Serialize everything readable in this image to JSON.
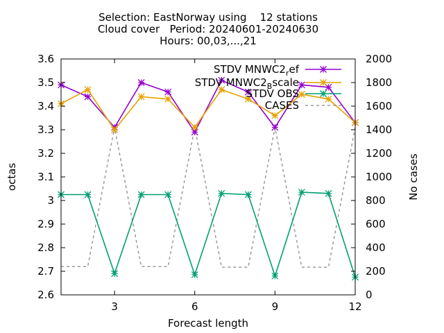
{
  "chart_data": {
    "type": "line",
    "title_lines": [
      "Selection: EastNorway using    12 stations",
      "Cloud cover   Period: 20240601-20240630",
      "Hours: 00,03,...,21"
    ],
    "xlabel": "Forecast length",
    "ylabel": "octas",
    "y2label": "No cases",
    "x": [
      1,
      2,
      3,
      4,
      5,
      6,
      7,
      8,
      9,
      10,
      11,
      12
    ],
    "xlim": [
      1,
      12
    ],
    "xticks": [
      3,
      6,
      9,
      12
    ],
    "ylim": [
      2.6,
      3.6
    ],
    "yticks": [
      "2.6",
      "2.7",
      "2.8",
      "2.9",
      "3",
      "3.1",
      "3.2",
      "3.3",
      "3.4",
      "3.5",
      "3.6"
    ],
    "y2lim": [
      0,
      2000
    ],
    "y2ticks": [
      "0",
      "200",
      "400",
      "600",
      "800",
      "1000",
      "1200",
      "1400",
      "1600",
      "1800",
      "2000"
    ],
    "grid": false,
    "legend_position": "top-right",
    "series": [
      {
        "name": "STDV MNWC2",
        "name_sub": "r",
        "name_tail": "ef",
        "axis": "y",
        "color": "#9400d3",
        "marker": "asterisk",
        "values": [
          3.49,
          3.44,
          3.31,
          3.5,
          3.46,
          3.29,
          3.51,
          3.46,
          3.31,
          3.49,
          3.48,
          3.33
        ]
      },
      {
        "name": "STDV MNWC2",
        "name_sub": "B",
        "name_tail": "scale",
        "axis": "y",
        "color": "#e69f00",
        "marker": "asterisk",
        "values": [
          3.41,
          3.47,
          3.3,
          3.44,
          3.43,
          3.31,
          3.47,
          3.43,
          3.36,
          3.45,
          3.43,
          3.33
        ]
      },
      {
        "name": "STDV OBS",
        "axis": "y",
        "color": "#009e73",
        "marker": "asterisk",
        "values": [
          3.025,
          3.025,
          2.69,
          3.025,
          3.025,
          2.685,
          3.03,
          3.025,
          2.68,
          3.035,
          3.03,
          2.675
        ]
      },
      {
        "name": "CASES",
        "axis": "y2",
        "color": "#999999",
        "dashed": true,
        "values": [
          240,
          240,
          1420,
          240,
          240,
          1420,
          235,
          235,
          1420,
          235,
          235,
          1420
        ]
      }
    ]
  }
}
